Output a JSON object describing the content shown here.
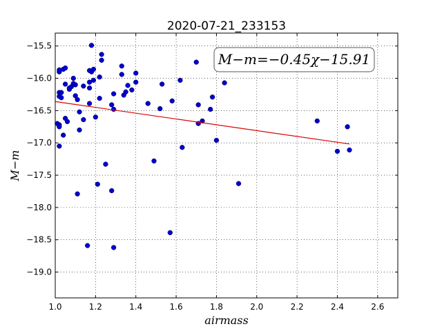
{
  "chart_data": {
    "type": "scatter",
    "title": "2020-07-21_233153",
    "xlabel": "airmass",
    "ylabel": "M−m",
    "xlim": [
      1.0,
      2.7
    ],
    "ylim": [
      -19.4,
      -15.3
    ],
    "x_ticks": [
      1.0,
      1.2,
      1.4,
      1.6,
      1.8,
      2.0,
      2.2,
      2.4,
      2.6
    ],
    "x_tick_labels": [
      "1.0",
      "1.2",
      "1.4",
      "1.6",
      "1.8",
      "2.0",
      "2.2",
      "2.4",
      "2.6"
    ],
    "y_ticks": [
      -15.5,
      -16.0,
      -16.5,
      -17.0,
      -17.5,
      -18.0,
      -18.5,
      -19.0
    ],
    "y_tick_labels": [
      "−15.5",
      "−16.0",
      "−16.5",
      "−17.0",
      "−17.5",
      "−18.0",
      "−18.5",
      "−19.0"
    ],
    "grid": true,
    "annotation": "M−m=−0.45χ−15.91",
    "colors": {
      "points": "#0000cc",
      "fit": "#dd0000"
    },
    "fit": {
      "slope": -0.45,
      "intercept": -15.91,
      "x": [
        1.0,
        2.46
      ]
    },
    "points": [
      [
        1.01,
        -16.7
      ],
      [
        1.02,
        -16.72
      ],
      [
        1.02,
        -17.05
      ],
      [
        1.02,
        -16.75
      ],
      [
        1.02,
        -15.9
      ],
      [
        1.02,
        -15.87
      ],
      [
        1.02,
        -16.22
      ],
      [
        1.02,
        -16.28
      ],
      [
        1.03,
        -16.3
      ],
      [
        1.03,
        -16.22
      ],
      [
        1.04,
        -15.86
      ],
      [
        1.05,
        -15.84
      ],
      [
        1.04,
        -16.88
      ],
      [
        1.05,
        -16.62
      ],
      [
        1.05,
        -16.09
      ],
      [
        1.06,
        -16.67
      ],
      [
        1.07,
        -16.17
      ],
      [
        1.07,
        -16.15
      ],
      [
        1.08,
        -16.13
      ],
      [
        1.09,
        -16.0
      ],
      [
        1.09,
        -16.08
      ],
      [
        1.1,
        -16.1
      ],
      [
        1.1,
        -16.27
      ],
      [
        1.11,
        -16.33
      ],
      [
        1.11,
        -17.79
      ],
      [
        1.12,
        -16.8
      ],
      [
        1.12,
        -16.52
      ],
      [
        1.14,
        -16.12
      ],
      [
        1.14,
        -16.64
      ],
      [
        1.16,
        -18.59
      ],
      [
        1.17,
        -15.88
      ],
      [
        1.17,
        -16.15
      ],
      [
        1.17,
        -16.39
      ],
      [
        1.17,
        -16.06
      ],
      [
        1.18,
        -15.9
      ],
      [
        1.18,
        -15.49
      ],
      [
        1.19,
        -15.86
      ],
      [
        1.19,
        -16.03
      ],
      [
        1.2,
        -16.6
      ],
      [
        1.21,
        -17.64
      ],
      [
        1.22,
        -16.31
      ],
      [
        1.22,
        -15.98
      ],
      [
        1.23,
        -15.63
      ],
      [
        1.23,
        -15.72
      ],
      [
        1.25,
        -17.33
      ],
      [
        1.28,
        -16.41
      ],
      [
        1.28,
        -17.74
      ],
      [
        1.29,
        -16.48
      ],
      [
        1.29,
        -16.24
      ],
      [
        1.29,
        -18.62
      ],
      [
        1.33,
        -15.81
      ],
      [
        1.33,
        -15.94
      ],
      [
        1.34,
        -16.26
      ],
      [
        1.35,
        -16.21
      ],
      [
        1.36,
        -16.11
      ],
      [
        1.38,
        -16.18
      ],
      [
        1.4,
        -16.06
      ],
      [
        1.4,
        -15.92
      ],
      [
        1.46,
        -16.39
      ],
      [
        1.49,
        -17.28
      ],
      [
        1.52,
        -16.47
      ],
      [
        1.53,
        -16.09
      ],
      [
        1.57,
        -18.39
      ],
      [
        1.58,
        -16.35
      ],
      [
        1.62,
        -16.03
      ],
      [
        1.63,
        -17.07
      ],
      [
        1.7,
        -15.75
      ],
      [
        1.71,
        -16.7
      ],
      [
        1.71,
        -16.41
      ],
      [
        1.73,
        -16.66
      ],
      [
        1.77,
        -16.48
      ],
      [
        1.78,
        -16.29
      ],
      [
        1.8,
        -16.96
      ],
      [
        1.84,
        -16.07
      ],
      [
        1.91,
        -17.63
      ],
      [
        2.3,
        -16.66
      ],
      [
        2.4,
        -17.13
      ],
      [
        2.45,
        -16.75
      ],
      [
        2.46,
        -17.11
      ]
    ]
  }
}
